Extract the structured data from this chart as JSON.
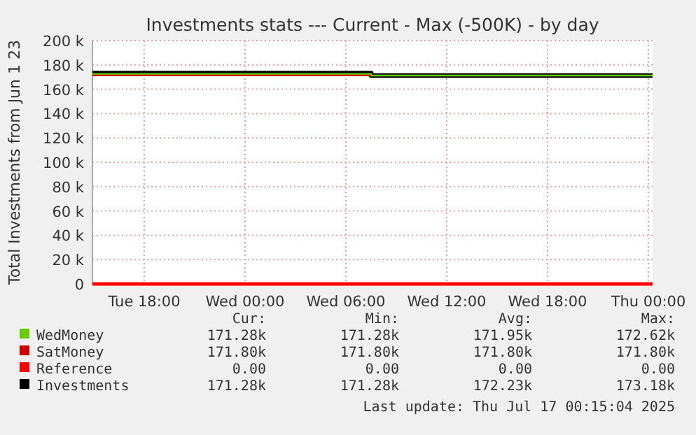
{
  "chart_data": {
    "type": "line",
    "title": "Investments stats --- Current - Max (-500K) - by day",
    "ylabel": "Total Investments from Jun 1 23",
    "xlim": [
      "2025-07-15T14:55",
      "2025-07-17T00:15"
    ],
    "xticks": [
      {
        "value": "2025-07-15T18:00",
        "label": "Tue 18:00"
      },
      {
        "value": "2025-07-16T00:00",
        "label": "Wed 00:00"
      },
      {
        "value": "2025-07-16T06:00",
        "label": "Wed 06:00"
      },
      {
        "value": "2025-07-16T12:00",
        "label": "Wed 12:00"
      },
      {
        "value": "2025-07-16T18:00",
        "label": "Wed 18:00"
      },
      {
        "value": "2025-07-17T00:00",
        "label": "Thu 00:00"
      }
    ],
    "ylim": [
      0,
      200000
    ],
    "yticks": [
      {
        "value": 0,
        "label": "0"
      },
      {
        "value": 20000,
        "label": "20 k"
      },
      {
        "value": 40000,
        "label": "40 k"
      },
      {
        "value": 60000,
        "label": "60 k"
      },
      {
        "value": 80000,
        "label": "80 k"
      },
      {
        "value": 100000,
        "label": "100 k"
      },
      {
        "value": 120000,
        "label": "120 k"
      },
      {
        "value": 140000,
        "label": "140 k"
      },
      {
        "value": 160000,
        "label": "160 k"
      },
      {
        "value": 180000,
        "label": "180 k"
      },
      {
        "value": 200000,
        "label": "200 k"
      }
    ],
    "grid": true,
    "legend": "bottom",
    "series": [
      {
        "name": "WedMoney",
        "color": "#66cc00",
        "x": [
          "2025-07-15T14:55",
          "2025-07-16T07:30",
          "2025-07-16T07:30",
          "2025-07-17T00:15"
        ],
        "values": [
          172620,
          172620,
          171280,
          171280
        ]
      },
      {
        "name": "SatMoney",
        "color": "#cc0000",
        "x": [
          "2025-07-15T14:55",
          "2025-07-16T07:30"
        ],
        "values": [
          171800,
          171800
        ]
      },
      {
        "name": "Reference",
        "color": "#ff0000",
        "x": [
          "2025-07-15T14:55",
          "2025-07-17T00:15"
        ],
        "values": [
          0,
          0
        ]
      },
      {
        "name": "Investments",
        "color": "#000000",
        "x": [
          "2025-07-15T14:55",
          "2025-07-16T07:30",
          "2025-07-16T07:30",
          "2025-07-17T00:15"
        ],
        "values": [
          173180,
          173180,
          171280,
          171280
        ]
      }
    ],
    "annotations": [
      "Cur:",
      "Min:",
      "Avg:",
      "Max:",
      "171.28k",
      "171.28k",
      "171.95k",
      "172.62k",
      "171.80k",
      "171.80k",
      "171.80k",
      "171.80k",
      "0.00",
      "0.00",
      "0.00",
      "0.00",
      "171.28k",
      "171.28k",
      "172.23k",
      "173.18k",
      "Last update: Thu Jul 17 00:15:04 2025"
    ]
  }
}
